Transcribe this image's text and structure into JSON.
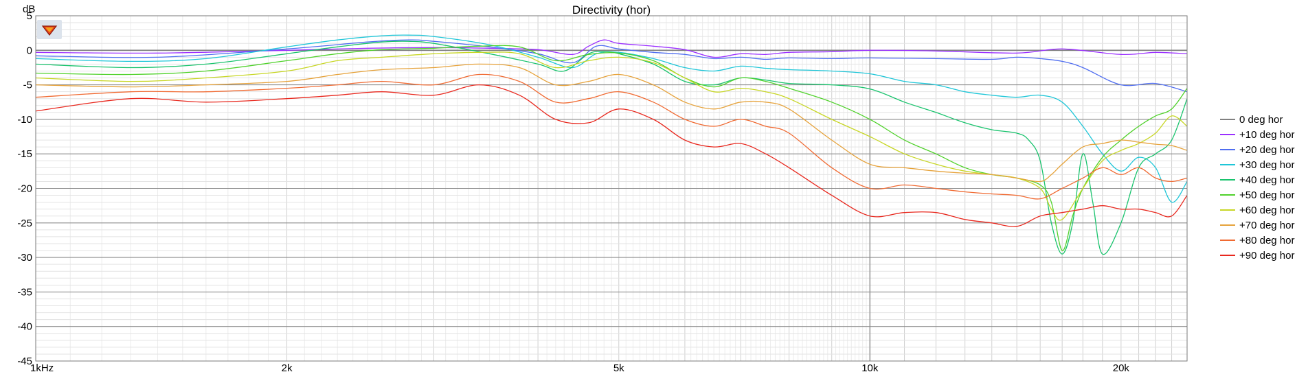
{
  "chart_data": {
    "type": "line",
    "title": "Directivity (hor)",
    "ylabel": "dB",
    "xlabel": "",
    "xscale": "log",
    "xlim": [
      1000,
      24000
    ],
    "ylim": [
      -45,
      5
    ],
    "grid": true,
    "legend_position": "right",
    "x_ticks": [
      {
        "value": 1000,
        "label": "1kHz"
      },
      {
        "value": 2000,
        "label": "2k"
      },
      {
        "value": 5000,
        "label": "5k"
      },
      {
        "value": 10000,
        "label": "10k"
      },
      {
        "value": 20000,
        "label": "20k"
      }
    ],
    "y_ticks": [
      5,
      0,
      -5,
      -10,
      -15,
      -20,
      -25,
      -30,
      -35,
      -40,
      -45
    ],
    "series": [
      {
        "name": "0 deg hor",
        "color": "#808080",
        "x": [
          1000,
          1500,
          2000,
          3000,
          4000,
          5000,
          6000,
          7000,
          8000,
          10000,
          12000,
          15000,
          17000,
          20000,
          22000,
          24000
        ],
        "y": [
          0,
          0,
          0,
          0,
          0,
          0,
          0,
          0,
          0,
          0,
          0,
          0,
          0,
          0,
          0,
          0
        ]
      },
      {
        "name": "+10 deg hor",
        "color": "#9b30ff",
        "x": [
          1000,
          1400,
          2000,
          2500,
          3000,
          3500,
          4000,
          4400,
          4600,
          4800,
          5000,
          5500,
          6000,
          6500,
          7000,
          7500,
          8000,
          9000,
          10000,
          12000,
          15000,
          17000,
          20000,
          22000,
          24000
        ],
        "y": [
          -0.3,
          -0.4,
          0,
          0.3,
          0.4,
          0.3,
          0.1,
          -0.6,
          0.6,
          1.5,
          1.0,
          0.6,
          0.1,
          -1.0,
          -0.5,
          -0.6,
          -0.3,
          -0.2,
          0,
          -0.1,
          -0.4,
          0.2,
          -0.6,
          -0.3,
          -0.5
        ]
      },
      {
        "name": "+20 deg hor",
        "color": "#4f6df0",
        "x": [
          1000,
          1400,
          2000,
          2500,
          2800,
          3000,
          3500,
          4000,
          4400,
          4700,
          5000,
          5500,
          6000,
          6500,
          7000,
          7500,
          8000,
          9000,
          10000,
          12000,
          14000,
          15000,
          16000,
          17000,
          18000,
          20000,
          22000,
          24000
        ],
        "y": [
          -0.8,
          -1.0,
          0.2,
          1.2,
          1.5,
          1.3,
          0.5,
          -0.5,
          -1.8,
          0.6,
          0.2,
          -0.3,
          -0.6,
          -1.2,
          -1.0,
          -1.3,
          -1.1,
          -1.2,
          -1.1,
          -1.2,
          -1.3,
          -1.0,
          -1.2,
          -1.6,
          -2.5,
          -5.0,
          -4.8,
          -6.0
        ]
      },
      {
        "name": "+30 deg hor",
        "color": "#1fc6d8",
        "x": [
          1000,
          1300,
          1600,
          2000,
          2300,
          2600,
          2800,
          3000,
          3500,
          4000,
          4400,
          4700,
          5000,
          5500,
          6000,
          6500,
          7000,
          7500,
          8000,
          9000,
          10000,
          11000,
          12000,
          13000,
          14000,
          15000,
          16000,
          17000,
          18000,
          19000,
          20000,
          21000,
          22000,
          23000,
          24000
        ],
        "y": [
          -1.2,
          -1.6,
          -1.2,
          0.5,
          1.5,
          2.1,
          2.2,
          2.0,
          0.8,
          -1.0,
          -2.5,
          -0.5,
          -0.3,
          -1.2,
          -2.5,
          -3.0,
          -2.3,
          -2.6,
          -2.8,
          -3.0,
          -3.4,
          -4.5,
          -5.0,
          -6.0,
          -6.5,
          -6.8,
          -6.5,
          -7.5,
          -11.0,
          -15.0,
          -17.5,
          -15.5,
          -17.0,
          -22.0,
          -19.0
        ]
      },
      {
        "name": "+40 deg hor",
        "color": "#19c36d",
        "x": [
          1000,
          1300,
          1600,
          2000,
          2300,
          2600,
          2800,
          3000,
          3500,
          4000,
          4300,
          4600,
          4800,
          5000,
          5500,
          6000,
          6500,
          7000,
          7500,
          8000,
          9000,
          10000,
          11000,
          12000,
          13000,
          14000,
          15000,
          15500,
          16000,
          16500,
          17000,
          17500,
          18000,
          18500,
          19000,
          20000,
          21000,
          22000,
          23000,
          24000
        ],
        "y": [
          -2.0,
          -2.5,
          -2.0,
          -0.5,
          0.5,
          1.2,
          1.3,
          1.0,
          -0.5,
          -2.0,
          -3.0,
          -0.5,
          -0.2,
          -0.5,
          -2.0,
          -4.5,
          -5.0,
          -4.0,
          -4.3,
          -4.8,
          -5.0,
          -5.6,
          -7.5,
          -9.0,
          -10.5,
          -11.5,
          -12.0,
          -13.0,
          -16.0,
          -25.0,
          -29.5,
          -25.0,
          -15.0,
          -22.0,
          -29.5,
          -25.0,
          -17.0,
          -15.0,
          -13.0,
          -7.0
        ]
      },
      {
        "name": "+50 deg hor",
        "color": "#4fd12a",
        "x": [
          1000,
          1300,
          1600,
          2000,
          2300,
          2600,
          3000,
          3400,
          3800,
          4200,
          4600,
          5000,
          5500,
          6000,
          6500,
          7000,
          7500,
          8000,
          9000,
          10000,
          11000,
          12000,
          13000,
          14000,
          15000,
          16000,
          16500,
          17000,
          17500,
          18000,
          19000,
          20000,
          21000,
          22000,
          23000,
          24000
        ],
        "y": [
          -3.3,
          -3.5,
          -3.0,
          -1.5,
          -0.5,
          0.1,
          0.3,
          0.6,
          0.5,
          -1.5,
          -0.6,
          -0.4,
          -1.5,
          -4.0,
          -5.3,
          -4.0,
          -4.5,
          -5.5,
          -7.5,
          -10.0,
          -13.0,
          -15.0,
          -17.0,
          -18.0,
          -18.5,
          -19.5,
          -22.0,
          -29.0,
          -24.0,
          -20.0,
          -15.5,
          -13.0,
          -11.0,
          -9.5,
          -8.5,
          -5.5
        ]
      },
      {
        "name": "+60 deg hor",
        "color": "#c7d624",
        "x": [
          1000,
          1300,
          1600,
          2000,
          2300,
          2600,
          3000,
          3400,
          3800,
          4200,
          4600,
          5000,
          5500,
          6000,
          6500,
          7000,
          7500,
          8000,
          9000,
          10000,
          11000,
          12000,
          13000,
          14000,
          15000,
          16000,
          16500,
          17000,
          18000,
          19000,
          20000,
          21000,
          22000,
          23000,
          24000
        ],
        "y": [
          -4.0,
          -4.5,
          -4.0,
          -3.0,
          -1.5,
          -1.0,
          -0.5,
          -0.3,
          -0.5,
          -2.5,
          -1.5,
          -1.0,
          -1.8,
          -4.0,
          -6.0,
          -5.5,
          -6.0,
          -7.0,
          -10.0,
          -12.5,
          -15.0,
          -16.5,
          -17.5,
          -18.0,
          -18.5,
          -20.0,
          -23.0,
          -24.5,
          -20.0,
          -16.0,
          -14.5,
          -13.5,
          -12.0,
          -9.5,
          -11.0
        ]
      },
      {
        "name": "+70 deg hor",
        "color": "#e6a23a",
        "x": [
          1000,
          1300,
          1600,
          2000,
          2300,
          2600,
          3000,
          3400,
          3800,
          4200,
          4600,
          5000,
          5500,
          6000,
          6500,
          7000,
          7500,
          8000,
          9000,
          10000,
          11000,
          12000,
          13000,
          14000,
          15000,
          16000,
          16500,
          17000,
          18000,
          19000,
          20000,
          21000,
          22000,
          23000,
          24000
        ],
        "y": [
          -5.0,
          -5.3,
          -5.0,
          -4.5,
          -3.5,
          -2.8,
          -2.5,
          -2.0,
          -2.5,
          -5.0,
          -4.5,
          -3.5,
          -5.0,
          -7.5,
          -8.5,
          -7.5,
          -7.5,
          -8.5,
          -13.0,
          -16.5,
          -17.0,
          -17.5,
          -17.8,
          -18.0,
          -18.5,
          -19.0,
          -18.0,
          -16.5,
          -14.0,
          -13.5,
          -13.0,
          -13.3,
          -13.6,
          -13.8,
          -14.5
        ]
      },
      {
        "name": "+80 deg hor",
        "color": "#f06a32",
        "x": [
          1000,
          1300,
          1600,
          2000,
          2300,
          2600,
          3000,
          3400,
          3800,
          4200,
          4600,
          5000,
          5500,
          6000,
          6500,
          7000,
          7500,
          8000,
          9000,
          10000,
          11000,
          12000,
          13000,
          14000,
          15000,
          16000,
          17000,
          18000,
          19000,
          20000,
          21000,
          22000,
          23000,
          24000
        ],
        "y": [
          -6.8,
          -6.0,
          -6.0,
          -5.5,
          -5.0,
          -4.5,
          -5.0,
          -3.5,
          -4.5,
          -7.5,
          -7.0,
          -6.0,
          -7.5,
          -10.0,
          -11.0,
          -10.0,
          -11.0,
          -12.0,
          -17.0,
          -20.0,
          -19.5,
          -20.0,
          -20.5,
          -20.8,
          -21.0,
          -21.5,
          -20.0,
          -18.5,
          -17.0,
          -18.0,
          -17.0,
          -18.5,
          -19.0,
          -18.5
        ]
      },
      {
        "name": "+90 deg hor",
        "color": "#e8281e",
        "x": [
          1000,
          1300,
          1600,
          2000,
          2300,
          2600,
          3000,
          3400,
          3800,
          4200,
          4600,
          5000,
          5500,
          6000,
          6500,
          7000,
          7500,
          8000,
          9000,
          10000,
          11000,
          12000,
          13000,
          14000,
          15000,
          16000,
          17000,
          18000,
          19000,
          20000,
          21000,
          22000,
          23000,
          24000
        ],
        "y": [
          -8.8,
          -7.0,
          -7.5,
          -7.0,
          -6.5,
          -6.0,
          -6.5,
          -5.0,
          -6.5,
          -10.0,
          -10.5,
          -8.5,
          -10.0,
          -13.0,
          -14.0,
          -13.5,
          -15.0,
          -17.0,
          -21.0,
          -24.0,
          -23.5,
          -23.5,
          -24.5,
          -25.0,
          -25.5,
          -24.0,
          -23.5,
          -23.0,
          -22.5,
          -23.0,
          -23.0,
          -23.5,
          -24.0,
          -21.0
        ]
      }
    ]
  }
}
